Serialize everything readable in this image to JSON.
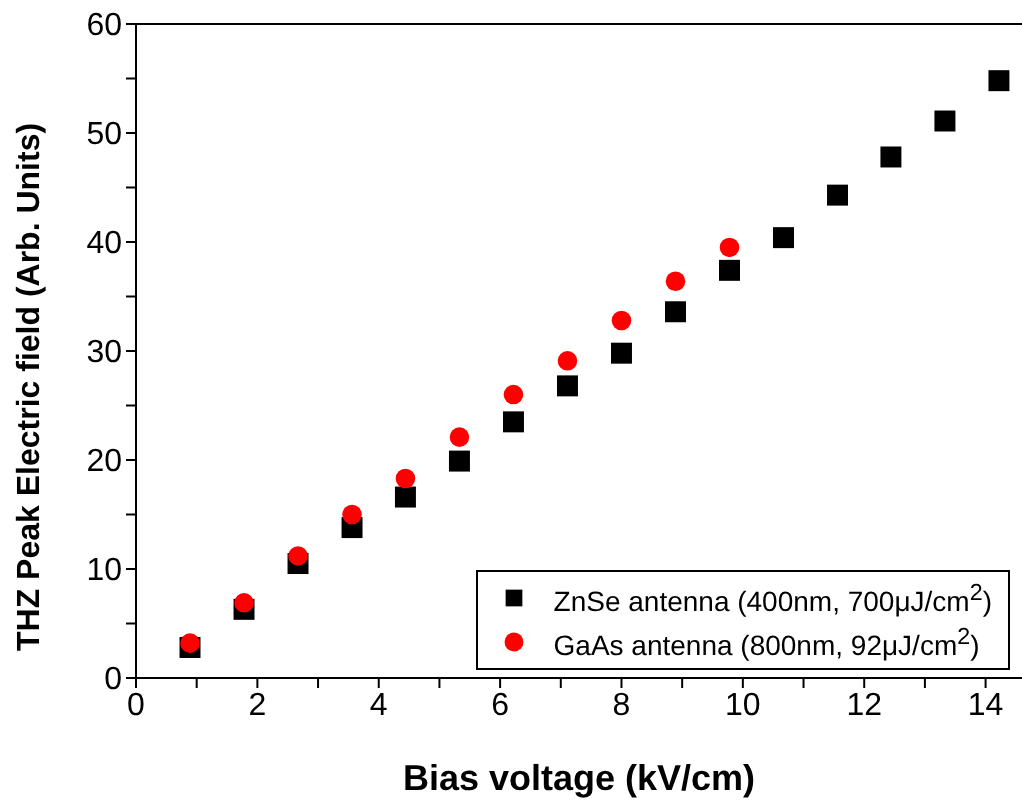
{
  "chart_data": {
    "type": "scatter",
    "xlabel": "Bias voltage (kV/cm)",
    "ylabel": "THZ Peak Electric field (Arb. Units)",
    "series": [
      {
        "name": "ZnSe antenna (400nm, 700μJ/cm$^{2}$)",
        "color": "#000000",
        "marker": "square",
        "x": [
          0.89,
          1.78,
          2.67,
          3.56,
          4.44,
          5.33,
          6.22,
          7.11,
          8.0,
          8.89,
          9.78,
          10.67,
          11.56,
          12.44,
          13.33,
          14.22
        ],
        "values": [
          2.8,
          6.3,
          10.5,
          13.8,
          16.6,
          19.9,
          23.5,
          26.8,
          29.8,
          33.6,
          37.4,
          40.4,
          44.3,
          47.8,
          51.1,
          54.8
        ]
      },
      {
        "name": "GaAs antenna (800nm, 92μJ/cm$^{2}$)",
        "color": "#ff0000",
        "marker": "circle",
        "x": [
          0.89,
          1.78,
          2.67,
          3.56,
          4.44,
          5.33,
          6.22,
          7.11,
          8.0,
          8.89,
          9.78
        ],
        "values": [
          3.2,
          6.9,
          11.2,
          15.0,
          18.3,
          22.1,
          26.0,
          29.1,
          32.8,
          36.4,
          39.5
        ]
      }
    ],
    "xlim": [
      0,
      14.6
    ],
    "xticks": [
      0,
      {
        "value": 1,
        "label": null
      },
      2,
      {
        "value": 3,
        "label": null
      },
      4,
      {
        "value": 5,
        "label": null
      },
      6,
      {
        "value": 7,
        "label": null
      },
      8,
      {
        "value": 9,
        "label": null
      },
      10,
      {
        "value": 11,
        "label": null
      },
      12,
      {
        "value": 13,
        "label": null
      },
      14
    ],
    "ylim": [
      0,
      60
    ],
    "yticks": [
      0,
      {
        "value": 5,
        "label": null
      },
      10,
      {
        "value": 15,
        "label": null
      },
      20,
      {
        "value": 25,
        "label": null
      },
      30,
      {
        "value": 35,
        "label": null
      },
      40,
      {
        "value": 45,
        "label": null
      },
      50,
      {
        "value": 55,
        "label": null
      },
      60
    ],
    "grid": false,
    "legend": "bottom right"
  }
}
